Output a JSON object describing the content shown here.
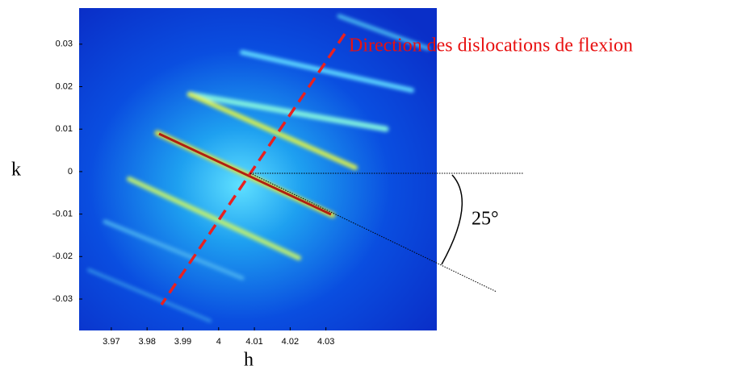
{
  "chart_data": {
    "type": "image",
    "x_label": "h",
    "y_label": "k",
    "xlim": [
      3.961,
      4.061
    ],
    "ylim": [
      -0.0374,
      0.0385
    ],
    "xticks": [
      3.97,
      3.98,
      3.99,
      4,
      4.01,
      4.02,
      4.03
    ],
    "yticks": [
      0.03,
      0.02,
      0.01,
      0,
      -0.01,
      -0.02,
      -0.03
    ],
    "annotations": [
      "Direction des dislocations de flexion",
      "25°"
    ]
  }
}
